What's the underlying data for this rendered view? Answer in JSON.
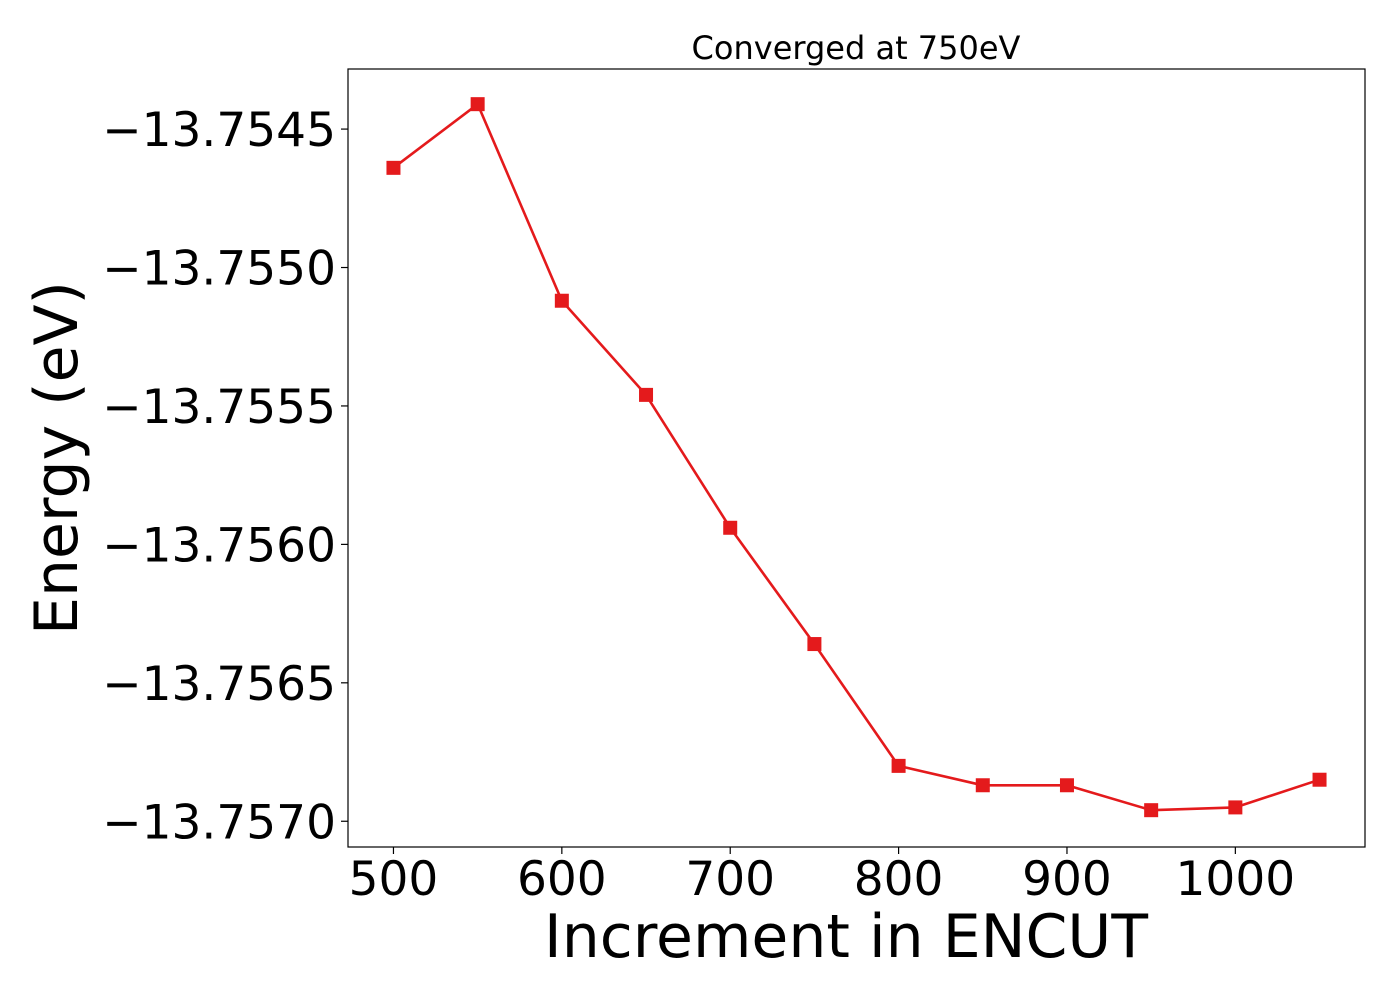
{
  "chart_data": {
    "type": "line",
    "title": "Converged at 750eV",
    "xlabel": "Increment in ENCUT",
    "ylabel": "Energy (eV)",
    "x": [
      500,
      550,
      600,
      650,
      700,
      750,
      800,
      850,
      900,
      950,
      1000,
      1050
    ],
    "series": [
      {
        "values": [
          -13.75464,
          -13.75441,
          -13.75512,
          -13.75546,
          -13.75594,
          -13.75636,
          -13.7568,
          -13.75687,
          -13.75687,
          -13.75696,
          -13.75695,
          -13.75685
        ],
        "color": "#e41a1c",
        "marker": "square"
      }
    ],
    "xlim": [
      473,
      1077
    ],
    "ylim": [
      -13.757093,
      -13.754283
    ],
    "xticks": [
      500,
      600,
      700,
      800,
      900,
      1000
    ],
    "xtick_labels": [
      "500",
      "600",
      "700",
      "800",
      "900",
      "1000"
    ],
    "yticks": [
      -13.7545,
      -13.755,
      -13.7555,
      -13.756,
      -13.7565,
      -13.757
    ],
    "ytick_labels": [
      "−13.7545",
      "−13.7550",
      "−13.7555",
      "−13.7560",
      "−13.7565",
      "−13.7570"
    ],
    "grid": false,
    "legend": "none"
  }
}
